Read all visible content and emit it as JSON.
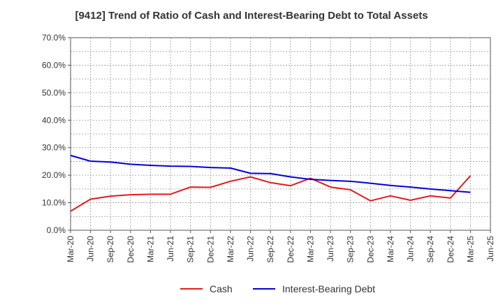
{
  "chart_data": {
    "type": "line",
    "title": "[9412]  Trend of Ratio of Cash and Interest-Bearing Debt to Total Assets",
    "xlabel": "",
    "ylabel": "",
    "ylim": [
      0,
      70
    ],
    "y_ticks": [
      "0.0%",
      "10.0%",
      "20.0%",
      "30.0%",
      "40.0%",
      "50.0%",
      "60.0%",
      "70.0%"
    ],
    "x_ticks": [
      "Mar-20",
      "Jun-20",
      "Sep-20",
      "Dec-20",
      "Mar-21",
      "Jun-21",
      "Sep-21",
      "Dec-21",
      "Mar-22",
      "Jun-22",
      "Sep-22",
      "Dec-22",
      "Mar-23",
      "Jun-23",
      "Sep-23",
      "Dec-23",
      "Mar-24",
      "Jun-24",
      "Sep-24",
      "Dec-24",
      "Mar-25",
      "Jun-25"
    ],
    "grid": true,
    "legend_position": "bottom",
    "series": [
      {
        "name": "Cash",
        "color": "#e41a1c",
        "x": [
          "Mar-20",
          "Jun-20",
          "Sep-20",
          "Dec-20",
          "Mar-21",
          "Jun-21",
          "Sep-21",
          "Dec-21",
          "Mar-22",
          "Jun-22",
          "Sep-22",
          "Dec-22",
          "Mar-23",
          "Jun-23",
          "Sep-23",
          "Dec-23",
          "Mar-24",
          "Jun-24",
          "Sep-24",
          "Dec-24",
          "Mar-25"
        ],
        "values": [
          6.9,
          11.3,
          12.4,
          12.9,
          13.1,
          13.1,
          15.7,
          15.6,
          17.8,
          19.4,
          17.3,
          16.2,
          18.9,
          15.7,
          14.7,
          10.7,
          12.5,
          10.9,
          12.5,
          11.7,
          19.8
        ]
      },
      {
        "name": "Interest-Bearing Debt",
        "color": "#0000dd",
        "x": [
          "Mar-20",
          "Jun-20",
          "Sep-20",
          "Dec-20",
          "Mar-21",
          "Jun-21",
          "Sep-21",
          "Dec-21",
          "Mar-22",
          "Jun-22",
          "Sep-22",
          "Dec-22",
          "Mar-23",
          "Jun-23",
          "Sep-23",
          "Dec-23",
          "Mar-24",
          "Jun-24",
          "Sep-24",
          "Dec-24",
          "Mar-25"
        ],
        "values": [
          27.2,
          25.1,
          24.8,
          24.0,
          23.6,
          23.3,
          23.2,
          22.8,
          22.6,
          20.7,
          20.6,
          19.4,
          18.5,
          18.1,
          17.8,
          17.1,
          16.3,
          15.7,
          15.0,
          14.4,
          13.8
        ]
      }
    ]
  }
}
